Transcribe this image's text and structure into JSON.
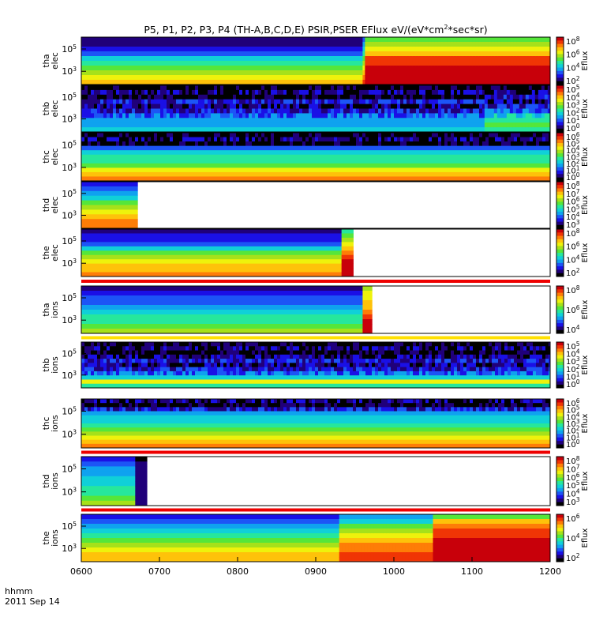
{
  "chart_data": {
    "type": "heatmap",
    "title": "P5, P1, P2, P3, P4 (TH-A,B,C,D,E) PSIR,PSER EFlux eV/(eV*cm",
    "title_sup": "2",
    "title_tail": "*sec*sr)",
    "time_label": "hhmm",
    "date_label": "2011 Sep 14",
    "x_range": [
      "0600",
      "1200"
    ],
    "x_ticks": [
      "0600",
      "0700",
      "0800",
      "0900",
      "1000",
      "1100",
      "1200"
    ],
    "colorbar_label": "Eflux",
    "colors": {
      "palette": [
        "#000000",
        "#20007a",
        "#1a10e6",
        "#1c55f6",
        "#0fa2ef",
        "#10d0d8",
        "#26e79c",
        "#55e63a",
        "#a6e11a",
        "#eef20c",
        "#fec20a",
        "#fe7d07",
        "#f03505",
        "#c8000a"
      ],
      "red_bar": "#ee0000",
      "yellow_bar": "#ffe000"
    },
    "panels": [
      {
        "id": "tha-elec",
        "label_line1": "tha",
        "label_line2": "elec",
        "y_ticks": [
          {
            "base": "10",
            "exp": "5"
          },
          {
            "base": "10",
            "exp": "3"
          }
        ],
        "colorbar_ticks": [
          {
            "base": "10",
            "exp": "8"
          },
          {
            "base": "10",
            "exp": "6"
          },
          {
            "base": "10",
            "exp": "4"
          },
          {
            "base": "10",
            "exp": "2"
          }
        ],
        "data_end": 1.0,
        "regions": [
          {
            "from": 0.0,
            "to": 0.6,
            "levels": [
              1,
              1,
              2,
              3,
              5,
              6,
              7,
              8,
              9,
              10
            ]
          },
          {
            "from": 0.6,
            "to": 0.605,
            "levels": [
              3,
              4,
              5,
              6,
              7,
              8,
              9,
              10,
              11,
              12
            ]
          },
          {
            "from": 0.605,
            "to": 1.0,
            "levels": [
              7,
              8,
              9,
              10,
              12,
              12,
              13,
              13,
              13,
              13
            ]
          }
        ],
        "band": "none"
      },
      {
        "id": "thb-elec",
        "label_line1": "thb",
        "label_line2": "elec",
        "y_ticks": [
          {
            "base": "10",
            "exp": "5"
          },
          {
            "base": "10",
            "exp": "3"
          }
        ],
        "colorbar_ticks": [
          {
            "base": "10",
            "exp": "5"
          },
          {
            "base": "10",
            "exp": "4"
          },
          {
            "base": "10",
            "exp": "3"
          },
          {
            "base": "10",
            "exp": "2"
          },
          {
            "base": "10",
            "exp": "1"
          },
          {
            "base": "10",
            "exp": "0"
          }
        ],
        "data_end": 1.0,
        "regions": [
          {
            "from": 0.0,
            "to": 0.86,
            "levels": [
              0,
              1,
              0,
              2,
              1,
              2,
              3,
              4,
              4,
              5
            ]
          },
          {
            "from": 0.86,
            "to": 1.0,
            "levels": [
              0,
              1,
              2,
              1,
              2,
              3,
              5,
              6,
              7,
              6
            ]
          }
        ],
        "noise": true,
        "band": "none"
      },
      {
        "id": "thc-elec",
        "label_line1": "thc",
        "label_line2": "elec",
        "y_ticks": [
          {
            "base": "10",
            "exp": "5"
          },
          {
            "base": "10",
            "exp": "3"
          }
        ],
        "colorbar_ticks": [
          {
            "base": "10",
            "exp": "6"
          },
          {
            "base": "10",
            "exp": "5"
          },
          {
            "base": "10",
            "exp": "4"
          },
          {
            "base": "10",
            "exp": "3"
          },
          {
            "base": "10",
            "exp": "2"
          },
          {
            "base": "10",
            "exp": "1"
          },
          {
            "base": "10",
            "exp": "0"
          }
        ],
        "data_end": 1.0,
        "regions": [
          {
            "from": 0.0,
            "to": 1.0,
            "levels": [
              0,
              1,
              0,
              3,
              5,
              6,
              6,
              7,
              9,
              10,
              11
            ]
          }
        ],
        "noise_rows": 3,
        "band": "none"
      },
      {
        "id": "thd-elec",
        "label_line1": "thd",
        "label_line2": "elec",
        "y_ticks": [
          {
            "base": "10",
            "exp": "5"
          },
          {
            "base": "10",
            "exp": "3"
          }
        ],
        "colorbar_ticks": [
          {
            "base": "10",
            "exp": "8"
          },
          {
            "base": "10",
            "exp": "7"
          },
          {
            "base": "10",
            "exp": "6"
          },
          {
            "base": "10",
            "exp": "5"
          },
          {
            "base": "10",
            "exp": "4"
          },
          {
            "base": "10",
            "exp": "3"
          }
        ],
        "data_end": 0.12,
        "regions": [
          {
            "from": 0.0,
            "to": 0.12,
            "levels": [
              2,
              3,
              4,
              5,
              7,
              8,
              9,
              10,
              11,
              11
            ]
          }
        ],
        "band": "none"
      },
      {
        "id": "the-elec",
        "label_line1": "the",
        "label_line2": "elec",
        "y_ticks": [
          {
            "base": "10",
            "exp": "5"
          },
          {
            "base": "10",
            "exp": "3"
          }
        ],
        "colorbar_ticks": [
          {
            "base": "10",
            "exp": "8"
          },
          {
            "base": "10",
            "exp": "6"
          },
          {
            "base": "10",
            "exp": "4"
          },
          {
            "base": "10",
            "exp": "2"
          }
        ],
        "data_end": 0.58,
        "regions": [
          {
            "from": 0.0,
            "to": 0.555,
            "levels": [
              1,
              2,
              2,
              3,
              5,
              7,
              8,
              9,
              10,
              10,
              11
            ]
          },
          {
            "from": 0.555,
            "to": 0.58,
            "levels": [
              6,
              7,
              8,
              9,
              10,
              11,
              12,
              13,
              13,
              13,
              13
            ]
          }
        ],
        "band": "red"
      },
      {
        "id": "tha-ions",
        "label_line1": "tha",
        "label_line2": "ions",
        "y_ticks": [
          {
            "base": "10",
            "exp": "5"
          },
          {
            "base": "10",
            "exp": "3"
          }
        ],
        "colorbar_ticks": [
          {
            "base": "10",
            "exp": "8"
          },
          {
            "base": "10",
            "exp": "6"
          },
          {
            "base": "10",
            "exp": "4"
          }
        ],
        "data_end": 0.62,
        "regions": [
          {
            "from": 0.0,
            "to": 0.6,
            "levels": [
              1,
              2,
              3,
              3,
              4,
              5,
              6,
              6,
              7,
              8
            ]
          },
          {
            "from": 0.6,
            "to": 0.62,
            "levels": [
              8,
              9,
              9,
              10,
              10,
              11,
              12,
              13,
              13,
              13
            ]
          }
        ],
        "band": "yellow"
      },
      {
        "id": "thb-ions",
        "label_line1": "thb",
        "label_line2": "ions",
        "y_ticks": [
          {
            "base": "10",
            "exp": "5"
          },
          {
            "base": "10",
            "exp": "3"
          }
        ],
        "colorbar_ticks": [
          {
            "base": "10",
            "exp": "5"
          },
          {
            "base": "10",
            "exp": "4"
          },
          {
            "base": "10",
            "exp": "3"
          },
          {
            "base": "10",
            "exp": "2"
          },
          {
            "base": "10",
            "exp": "1"
          },
          {
            "base": "10",
            "exp": "0"
          }
        ],
        "data_end": 1.0,
        "regions": [
          {
            "from": 0.0,
            "to": 1.0,
            "levels": [
              0,
              1,
              0,
              1,
              2,
              1,
              2,
              3,
              5,
              9,
              6
            ]
          }
        ],
        "noise": true,
        "band": "none"
      },
      {
        "id": "thc-ions",
        "label_line1": "thc",
        "label_line2": "ions",
        "y_ticks": [
          {
            "base": "10",
            "exp": "5"
          },
          {
            "base": "10",
            "exp": "3"
          }
        ],
        "colorbar_ticks": [
          {
            "base": "10",
            "exp": "6"
          },
          {
            "base": "10",
            "exp": "5"
          },
          {
            "base": "10",
            "exp": "4"
          },
          {
            "base": "10",
            "exp": "3"
          },
          {
            "base": "10",
            "exp": "2"
          },
          {
            "base": "10",
            "exp": "1"
          },
          {
            "base": "10",
            "exp": "0"
          }
        ],
        "data_end": 1.0,
        "regions": [
          {
            "from": 0.0,
            "to": 1.0,
            "levels": [
              1,
              0,
              2,
              4,
              5,
              5,
              6,
              7,
              8,
              9,
              10,
              11
            ]
          }
        ],
        "noise_rows": 3,
        "band": "red"
      },
      {
        "id": "thd-ions",
        "label_line1": "thd",
        "label_line2": "ions",
        "y_ticks": [
          {
            "base": "10",
            "exp": "5"
          },
          {
            "base": "10",
            "exp": "3"
          }
        ],
        "colorbar_ticks": [
          {
            "base": "10",
            "exp": "8"
          },
          {
            "base": "10",
            "exp": "7"
          },
          {
            "base": "10",
            "exp": "6"
          },
          {
            "base": "10",
            "exp": "5"
          },
          {
            "base": "10",
            "exp": "4"
          },
          {
            "base": "10",
            "exp": "3"
          }
        ],
        "data_end": 0.14,
        "regions": [
          {
            "from": 0.0,
            "to": 0.115,
            "levels": [
              2,
              3,
              4,
              4,
              5,
              5,
              6,
              6,
              7,
              8
            ]
          },
          {
            "from": 0.115,
            "to": 0.14,
            "levels": [
              0,
              1,
              1,
              1,
              1,
              1,
              1,
              1,
              1,
              1
            ]
          }
        ],
        "band": "red"
      },
      {
        "id": "the-ions",
        "label_line1": "the",
        "label_line2": "ions",
        "y_ticks": [
          {
            "base": "10",
            "exp": "5"
          },
          {
            "base": "10",
            "exp": "3"
          }
        ],
        "colorbar_ticks": [
          {
            "base": "10",
            "exp": "6"
          },
          {
            "base": "10",
            "exp": "4"
          },
          {
            "base": "10",
            "exp": "2"
          }
        ],
        "data_end": 1.0,
        "regions": [
          {
            "from": 0.0,
            "to": 0.55,
            "levels": [
              2,
              3,
              4,
              5,
              6,
              7,
              8,
              9,
              10,
              10
            ]
          },
          {
            "from": 0.55,
            "to": 0.75,
            "levels": [
              4,
              5,
              7,
              8,
              9,
              10,
              11,
              11,
              12,
              12
            ]
          },
          {
            "from": 0.75,
            "to": 1.0,
            "levels": [
              7,
              10,
              11,
              12,
              12,
              13,
              13,
              13,
              13,
              13
            ]
          }
        ],
        "band": "none"
      }
    ]
  }
}
